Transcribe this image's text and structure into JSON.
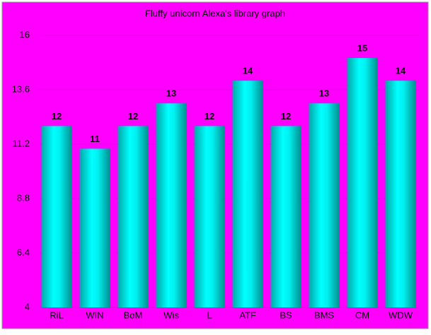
{
  "chart_data": {
    "type": "bar",
    "title": "Fluffy unicorn Alexa's library graph",
    "categories": [
      "RiL",
      "WIN",
      "BoM",
      "Wis",
      "L",
      "ATF",
      "BS",
      "BMS",
      "CM",
      "WDW"
    ],
    "values": [
      12,
      11,
      12,
      13,
      12,
      14,
      12,
      13,
      15,
      14
    ],
    "color": "#00ffff",
    "background": "#ff00ff",
    "ylim": [
      4,
      16
    ],
    "yticks": [
      4,
      6.4,
      8.8,
      11.2,
      13.6,
      16
    ],
    "grid": true
  }
}
